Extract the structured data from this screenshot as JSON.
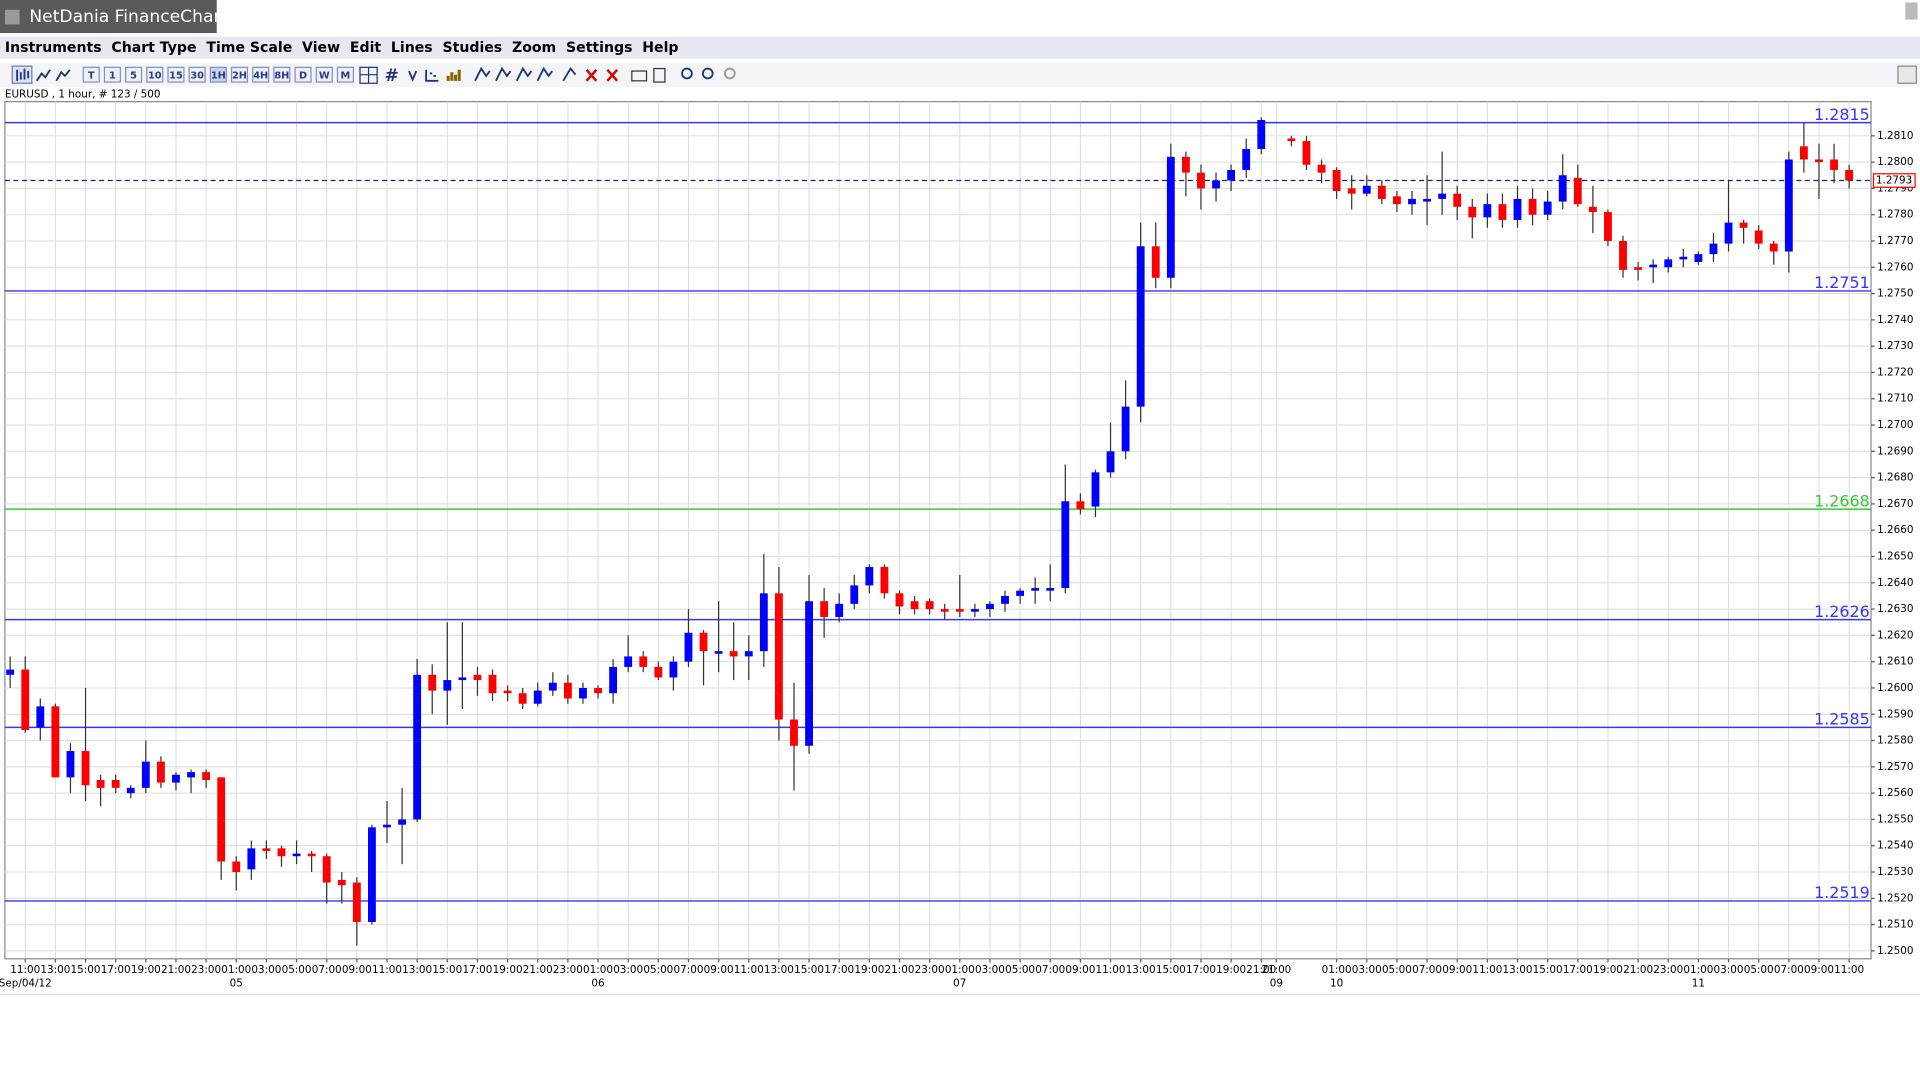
{
  "window": {
    "title": "NetDania FinanceChart",
    "menu": [
      "Instruments",
      "Chart Type",
      "Time Scale",
      "View",
      "Edit",
      "Lines",
      "Studies",
      "Zoom",
      "Settings",
      "Help"
    ],
    "toolbar": [
      "T",
      "1",
      "5",
      "10",
      "15",
      "30",
      "1H",
      "2H",
      "4H",
      "8H",
      "D",
      "W",
      "M"
    ]
  },
  "chart_data": {
    "type": "candlestick",
    "title": "EURUSD , 1 hour, # 123 / 500",
    "up_color": "#0000ff",
    "down_color": "#ff0000",
    "grid": true,
    "categories": [
      null,
      "11:00",
      null,
      "13:00",
      null,
      "15:00",
      null,
      "17:00",
      null,
      "19:00",
      null,
      "21:00",
      null,
      "23:00",
      null,
      "01:00",
      null,
      "03:00",
      null,
      "05:00",
      null,
      "07:00",
      null,
      "09:00",
      null,
      "11:00",
      null,
      "13:00",
      null,
      "15:00",
      null,
      "17:00",
      null,
      "19:00",
      null,
      "21:00",
      null,
      "23:00",
      null,
      "01:00",
      null,
      "03:00",
      null,
      "05:00",
      null,
      "07:00",
      null,
      "09:00",
      null,
      "11:00",
      null,
      "13:00",
      null,
      "15:00",
      null,
      "17:00",
      null,
      "19:00",
      null,
      "21:00",
      null,
      "23:00",
      null,
      "01:00",
      null,
      "03:00",
      null,
      "05:00",
      null,
      "07:00",
      null,
      "09:00",
      null,
      "11:00",
      null,
      "13:00",
      null,
      "15:00",
      null,
      "17:00",
      null,
      "19:00",
      null,
      "21:00",
      "21:00",
      null,
      null,
      null,
      "01:00",
      null,
      "03:00",
      null,
      "05:00",
      null,
      "07:00",
      null,
      "09:00",
      null,
      "11:00",
      null,
      "13:00",
      null,
      "15:00",
      null,
      "17:00",
      null,
      "19:00",
      null,
      "21:00",
      null,
      "23:00",
      null,
      "01:00",
      null,
      "03:00",
      null,
      "05:00",
      null,
      "07:00",
      null,
      "09:00",
      null,
      "11:00"
    ],
    "dates": [
      null,
      "Sep/04/12",
      null,
      null,
      null,
      null,
      null,
      null,
      null,
      null,
      null,
      null,
      null,
      null,
      null,
      "05",
      null,
      null,
      null,
      null,
      null,
      null,
      null,
      null,
      null,
      null,
      null,
      null,
      null,
      null,
      null,
      null,
      null,
      null,
      null,
      null,
      null,
      null,
      null,
      "06",
      null,
      null,
      null,
      null,
      null,
      null,
      null,
      null,
      null,
      null,
      null,
      null,
      null,
      null,
      null,
      null,
      null,
      null,
      null,
      null,
      null,
      null,
      null,
      "07",
      null,
      null,
      null,
      null,
      null,
      null,
      null,
      null,
      null,
      null,
      null,
      null,
      null,
      null,
      null,
      null,
      null,
      null,
      null,
      null,
      "09",
      null,
      null,
      null,
      "10",
      null,
      null,
      null,
      null,
      null,
      null,
      null,
      null,
      null,
      null,
      null,
      null,
      null,
      null,
      null,
      null,
      null,
      null,
      null,
      null,
      null,
      null,
      null,
      "11",
      null,
      null,
      null,
      null,
      null,
      null,
      null,
      null,
      null,
      null
    ],
    "open": [
      1.2605,
      1.2607,
      1.2585,
      1.2593,
      1.2566,
      1.2576,
      1.2565,
      1.2565,
      1.256,
      1.2562,
      1.2572,
      1.2564,
      1.2566,
      1.2568,
      1.2566,
      1.2534,
      1.2531,
      1.2539,
      1.2539,
      1.2536,
      1.2537,
      1.2536,
      1.2527,
      1.2526,
      1.2511,
      1.2547,
      1.2548,
      1.255,
      1.2605,
      1.2599,
      1.2603,
      1.2605,
      1.2605,
      1.2599,
      1.2598,
      1.2594,
      1.2599,
      1.2602,
      1.2596,
      1.26,
      1.2598,
      1.2608,
      1.2612,
      1.2608,
      1.2604,
      1.261,
      1.2621,
      1.2613,
      1.2614,
      1.2612,
      1.2614,
      1.2636,
      1.2588,
      1.2578,
      1.2633,
      1.2627,
      1.2632,
      1.2639,
      1.2646,
      1.2636,
      1.2633,
      1.2633,
      1.263,
      1.263,
      1.2629,
      1.263,
      1.2632,
      1.2635,
      1.2637,
      1.2637,
      1.2638,
      1.2671,
      1.2669,
      1.2682,
      1.269,
      1.2707,
      1.2768,
      1.2756,
      1.2802,
      1.2796,
      1.279,
      1.2793,
      1.2797,
      1.2805,
      null,
      1.2809,
      1.2808,
      1.2799,
      1.2797,
      1.279,
      1.2788,
      1.2791,
      1.2787,
      1.2784,
      1.2785,
      1.2786,
      1.2788,
      1.2783,
      1.2779,
      1.2784,
      1.2778,
      1.2786,
      1.278,
      1.2785,
      1.2794,
      1.2783,
      1.2781,
      1.277,
      1.276,
      1.276,
      1.276,
      1.2763,
      1.2762,
      1.2765,
      1.2769,
      1.2777,
      1.2774,
      1.2769,
      1.2766,
      1.2806,
      1.2801,
      1.2801,
      1.2797
    ],
    "high": [
      1.2612,
      1.2612,
      1.2596,
      1.2594,
      1.2579,
      1.26,
      1.2567,
      1.2567,
      1.2563,
      1.258,
      1.2574,
      1.2568,
      1.2569,
      1.2569,
      1.2566,
      1.2536,
      1.2542,
      1.2542,
      1.254,
      1.2542,
      1.2538,
      1.2537,
      1.253,
      1.2528,
      1.2548,
      1.2557,
      1.2562,
      1.2611,
      1.2609,
      1.2625,
      1.2625,
      1.2608,
      1.2607,
      1.2601,
      1.26,
      1.2602,
      1.2606,
      1.2605,
      1.2602,
      1.2601,
      1.2611,
      1.262,
      1.2614,
      1.261,
      1.2612,
      1.263,
      1.2622,
      1.2633,
      1.2625,
      1.262,
      1.2651,
      1.2646,
      1.2602,
      1.2643,
      1.2638,
      1.2636,
      1.2643,
      1.2647,
      1.2647,
      1.2637,
      1.2635,
      1.2634,
      1.2632,
      1.2643,
      1.2632,
      1.2633,
      1.2637,
      1.2638,
      1.2642,
      1.2647,
      1.2685,
      1.2674,
      1.2683,
      1.2701,
      1.2717,
      1.2777,
      1.2777,
      1.2807,
      1.2804,
      1.2799,
      1.2796,
      1.2799,
      1.2809,
      1.2817,
      null,
      1.281,
      1.281,
      1.2801,
      1.2798,
      1.2795,
      1.2795,
      1.2793,
      1.2789,
      1.2789,
      1.2795,
      1.2804,
      1.2791,
      1.2786,
      1.2788,
      1.2788,
      1.2791,
      1.279,
      1.2789,
      1.2803,
      1.2799,
      1.2791,
      1.2782,
      1.2772,
      1.2762,
      1.2763,
      1.2764,
      1.2767,
      1.2766,
      1.2773,
      1.2793,
      1.2778,
      1.2776,
      1.277,
      1.2804,
      1.2815,
      1.2807,
      1.2807,
      1.2799
    ],
    "low": [
      1.26,
      1.2583,
      1.258,
      1.2566,
      1.256,
      1.2557,
      1.2555,
      1.256,
      1.2558,
      1.256,
      1.2562,
      1.2561,
      1.256,
      1.2562,
      1.2527,
      1.2523,
      1.2527,
      1.2535,
      1.2532,
      1.2533,
      1.253,
      1.2518,
      1.2518,
      1.2502,
      1.251,
      1.2541,
      1.2533,
      1.2549,
      1.259,
      1.2586,
      1.2592,
      1.2597,
      1.2595,
      1.2595,
      1.2592,
      1.2593,
      1.2597,
      1.2594,
      1.2594,
      1.2596,
      1.2594,
      1.2606,
      1.2606,
      1.2603,
      1.2599,
      1.2608,
      1.2601,
      1.2606,
      1.2603,
      1.2603,
      1.2608,
      1.258,
      1.2561,
      1.2575,
      1.2619,
      1.2625,
      1.263,
      1.2636,
      1.2634,
      1.2628,
      1.2628,
      1.2628,
      1.2626,
      1.2627,
      1.2627,
      1.2627,
      1.2629,
      1.2632,
      1.2632,
      1.2633,
      1.2636,
      1.2666,
      1.2665,
      1.268,
      1.2687,
      1.2701,
      1.2752,
      1.2752,
      1.2787,
      1.2782,
      1.2785,
      1.2789,
      1.2794,
      1.2803,
      null,
      1.2806,
      1.2797,
      1.2792,
      1.2786,
      1.2782,
      1.2787,
      1.2784,
      1.2781,
      1.278,
      1.2776,
      1.278,
      1.2778,
      1.2771,
      1.2775,
      1.2775,
      1.2775,
      1.2776,
      1.2778,
      1.2782,
      1.2783,
      1.2773,
      1.2768,
      1.2756,
      1.2755,
      1.2754,
      1.2758,
      1.276,
      1.2761,
      1.2762,
      1.2766,
      1.2769,
      1.2767,
      1.2761,
      1.2758,
      1.2796,
      1.2786,
      1.2792,
      1.279
    ],
    "close": [
      1.2607,
      1.2584,
      1.2593,
      1.2566,
      1.2576,
      1.2563,
      1.2562,
      1.2562,
      1.2562,
      1.2572,
      1.2564,
      1.2567,
      1.2568,
      1.2565,
      1.2534,
      1.253,
      1.2539,
      1.2538,
      1.2536,
      1.2537,
      1.2536,
      1.2526,
      1.2525,
      1.2511,
      1.2547,
      1.2548,
      1.255,
      1.2605,
      1.2599,
      1.2603,
      1.2604,
      1.2603,
      1.2598,
      1.2598,
      1.2594,
      1.2599,
      1.2602,
      1.2596,
      1.26,
      1.2598,
      1.2608,
      1.2612,
      1.2608,
      1.2604,
      1.261,
      1.2621,
      1.2614,
      1.2614,
      1.2612,
      1.2614,
      1.2636,
      1.2588,
      1.2578,
      1.2633,
      1.2627,
      1.2632,
      1.2639,
      1.2646,
      1.2636,
      1.2631,
      1.263,
      1.263,
      1.2629,
      1.2629,
      1.263,
      1.2632,
      1.2635,
      1.2637,
      1.2638,
      1.2638,
      1.2671,
      1.2668,
      1.2682,
      1.269,
      1.2707,
      1.2768,
      1.2756,
      1.2802,
      1.2796,
      1.279,
      1.2793,
      1.2797,
      1.2805,
      1.2816,
      null,
      1.2808,
      1.2799,
      1.2796,
      1.2789,
      1.2788,
      1.2791,
      1.2786,
      1.2784,
      1.2786,
      1.2786,
      1.2788,
      1.2783,
      1.2779,
      1.2784,
      1.2778,
      1.2786,
      1.278,
      1.2785,
      1.2795,
      1.2784,
      1.2781,
      1.277,
      1.2759,
      1.2759,
      1.2761,
      1.2763,
      1.2764,
      1.2765,
      1.2769,
      1.2777,
      1.2775,
      1.2769,
      1.2766,
      1.2801,
      1.2801,
      1.28,
      1.2797,
      1.2793
    ],
    "ylim": [
      1.2497,
      1.2823
    ],
    "yticks": [
      {
        "value": 1.25,
        "label": "1.2500"
      },
      {
        "value": 1.251,
        "label": "1.2510"
      },
      {
        "value": 1.252,
        "label": "1.2520"
      },
      {
        "value": 1.253,
        "label": "1.2530"
      },
      {
        "value": 1.254,
        "label": "1.2540"
      },
      {
        "value": 1.255,
        "label": "1.2550"
      },
      {
        "value": 1.256,
        "label": "1.2560"
      },
      {
        "value": 1.257,
        "label": "1.2570"
      },
      {
        "value": 1.258,
        "label": "1.2580"
      },
      {
        "value": 1.259,
        "label": "1.2590"
      },
      {
        "value": 1.26,
        "label": "1.2600"
      },
      {
        "value": 1.261,
        "label": "1.2610"
      },
      {
        "value": 1.262,
        "label": "1.2620"
      },
      {
        "value": 1.263,
        "label": "1.2630"
      },
      {
        "value": 1.264,
        "label": "1.2640"
      },
      {
        "value": 1.265,
        "label": "1.2650"
      },
      {
        "value": 1.266,
        "label": "1.2660"
      },
      {
        "value": 1.267,
        "label": "1.2670"
      },
      {
        "value": 1.268,
        "label": "1.2680"
      },
      {
        "value": 1.269,
        "label": "1.2690"
      },
      {
        "value": 1.27,
        "label": "1.2700"
      },
      {
        "value": 1.271,
        "label": "1.2710"
      },
      {
        "value": 1.272,
        "label": "1.2720"
      },
      {
        "value": 1.273,
        "label": "1.2730"
      },
      {
        "value": 1.274,
        "label": "1.2740"
      },
      {
        "value": 1.275,
        "label": "1.2750"
      },
      {
        "value": 1.276,
        "label": "1.2760"
      },
      {
        "value": 1.277,
        "label": "1.2770"
      },
      {
        "value": 1.278,
        "label": "1.2780"
      },
      {
        "value": 1.279,
        "label": "1.2790"
      },
      {
        "value": 1.28,
        "label": "1.2800"
      },
      {
        "value": 1.281,
        "label": "1.2810"
      }
    ],
    "levels": [
      {
        "value": 1.2815,
        "color": "#3535ff"
      },
      {
        "value": 1.2751,
        "color": "#3535ff"
      },
      {
        "value": 1.2668,
        "color": "#33cc33"
      },
      {
        "value": 1.2626,
        "color": "#3535ff"
      },
      {
        "value": 1.2585,
        "color": "#3535ff"
      },
      {
        "value": 1.2519,
        "color": "#3535ff"
      }
    ],
    "last_price": {
      "value": 1.2793,
      "color": "#ff0000"
    }
  }
}
